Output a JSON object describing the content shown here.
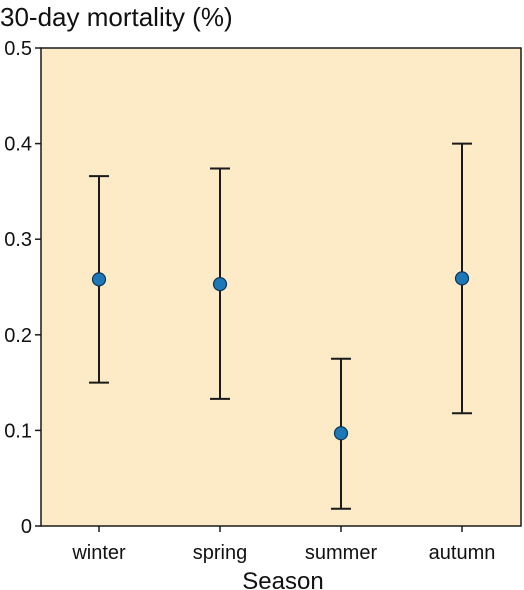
{
  "chart_data": {
    "type": "scatter",
    "title": "",
    "ylabel": "30-day mortality (%)",
    "xlabel": "Season",
    "categories": [
      "winter",
      "spring",
      "summer",
      "autumn"
    ],
    "values": [
      0.258,
      0.253,
      0.097,
      0.259
    ],
    "error_low": [
      0.15,
      0.133,
      0.018,
      0.118
    ],
    "error_high": [
      0.366,
      0.374,
      0.175,
      0.4
    ],
    "ylim": [
      0,
      0.5
    ],
    "yticks": [
      "0",
      "0.1",
      "0.2",
      "0.3",
      "0.4",
      "0.5"
    ],
    "ytick_values": [
      0,
      0.1,
      0.2,
      0.3,
      0.4,
      0.5
    ],
    "grid": false,
    "legend": "none",
    "colors": {
      "plot_background": "#fdebc8",
      "point_fill": "#1d78b8",
      "point_stroke": "#0d3557",
      "error_bar": "#1a1a1a",
      "axis": "#1a1a1a",
      "text": "#111111"
    }
  }
}
